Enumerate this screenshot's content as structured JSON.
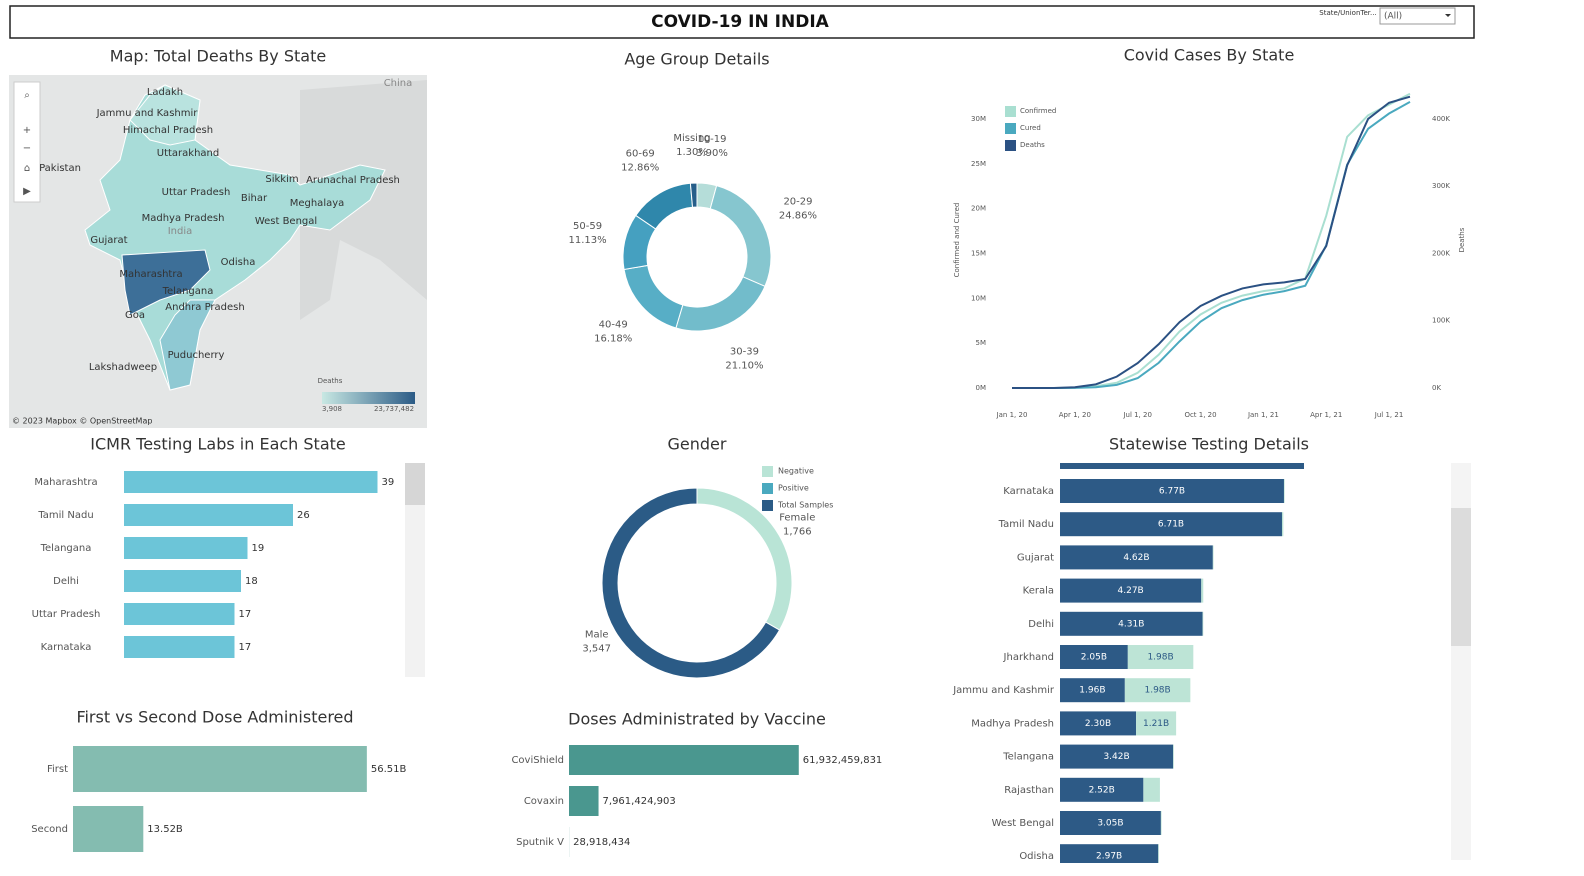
{
  "header": {
    "title": "COVID-19 IN INDIA",
    "filter_label": "State/UnionTer...",
    "filter_value": "(All)"
  },
  "map": {
    "title": "Map: Total Deaths By State",
    "labels": [
      "Ladakh",
      "Jammu and Kashmir",
      "Himachal Pradesh",
      "Uttarakhand",
      "Pakistan",
      "Uttar Pradesh",
      "Bihar",
      "Sikkim",
      "Arunachal Pradesh",
      "Meghalaya",
      "Madhya Pradesh",
      "West Bengal",
      "India",
      "Gujarat",
      "Odisha",
      "Maharashtra",
      "Telangana",
      "Andhra Pradesh",
      "Goa",
      "Puducherry",
      "Lakshadweep",
      "China"
    ],
    "legend_title": "Deaths",
    "legend_min": "3,908",
    "legend_max": "23,737,482",
    "credit": "© 2023 Mapbox © OpenStreetMap"
  },
  "chart_data": [
    {
      "type": "pie",
      "title": "Age Group Details",
      "categories": [
        "10-19",
        "20-29",
        "30-39",
        "40-49",
        "50-59",
        "60-69",
        "Missing"
      ],
      "values": [
        3.9,
        24.86,
        21.1,
        16.18,
        11.13,
        12.86,
        1.3
      ],
      "value_labels": [
        "3.90%",
        "24.86%",
        "21.10%",
        "16.18%",
        "11.13%",
        "12.86%",
        "1.30%"
      ],
      "colors": [
        "#b5ddd9",
        "#86c6cf",
        "#72bccb",
        "#57aec6",
        "#45a0c0",
        "#2f87ab",
        "#265e8a"
      ]
    },
    {
      "type": "line",
      "title": "Covid Cases By State",
      "categories": [
        "Jan 1, 20",
        null,
        null,
        "Apr 1, 20",
        null,
        null,
        "Jul 1, 20",
        null,
        null,
        "Oct 1, 20",
        null,
        null,
        "Jan 1, 21",
        null,
        null,
        "Apr 1, 21",
        null,
        null,
        "Jul 1, 21",
        null
      ],
      "series": [
        {
          "name": "Confirmed",
          "color": "#a9dfd1",
          "values": [
            0,
            0,
            1600,
            35000,
            190000,
            585000,
            1700000,
            3700000,
            6300000,
            8200000,
            9500000,
            10300000,
            10800000,
            11100000,
            12200000,
            19200000,
            28000000,
            30400000,
            31600000,
            32800000
          ]
        },
        {
          "name": "Cured",
          "color": "#4aa9bf",
          "values": [
            0,
            0,
            100,
            8000,
            90000,
            347000,
            1100000,
            2800000,
            5200000,
            7400000,
            8900000,
            9800000,
            10400000,
            10800000,
            11400000,
            15900000,
            24900000,
            28900000,
            30600000,
            31900000
          ]
        },
        {
          "name": "Deaths",
          "color": "#2b5183",
          "axis": "y2",
          "values": [
            0,
            0,
            50,
            1100,
            5400,
            16900,
            37000,
            65000,
            98000,
            122000,
            137000,
            148000,
            154000,
            157000,
            162000,
            211000,
            331000,
            400000,
            424000,
            433000
          ]
        }
      ],
      "y_label": "Confirmed and Cured",
      "y2_label": "Deaths",
      "ylim": [
        0,
        33000000
      ],
      "yticks": [
        {
          "value": 0,
          "label": "0M"
        },
        {
          "value": 5000000,
          "label": "5M"
        },
        {
          "value": 10000000,
          "label": "10M"
        },
        {
          "value": 15000000,
          "label": "15M"
        },
        {
          "value": 20000000,
          "label": "20M"
        },
        {
          "value": 25000000,
          "label": "25M"
        },
        {
          "value": 30000000,
          "label": "30M"
        }
      ],
      "y2lim": [
        0,
        440000
      ],
      "y2ticks": [
        {
          "value": 0,
          "label": "0K"
        },
        {
          "value": 100000,
          "label": "100K"
        },
        {
          "value": 200000,
          "label": "200K"
        },
        {
          "value": 300000,
          "label": "300K"
        },
        {
          "value": 400000,
          "label": "400K"
        }
      ],
      "legend": "top-left"
    },
    {
      "type": "hbar",
      "title": "ICMR Testing Labs in Each State",
      "categories": [
        "Maharashtra",
        "Tamil Nadu",
        "Telangana",
        "Delhi",
        "Uttar Pradesh",
        "Karnataka"
      ],
      "values": [
        39,
        26,
        19,
        18,
        17,
        17
      ],
      "color": "#6cc5d8",
      "xlim": [
        0,
        44
      ]
    },
    {
      "type": "pie",
      "title": "Gender",
      "categories": [
        "Female",
        "Male"
      ],
      "values": [
        1766,
        3547
      ],
      "value_labels": [
        "1,766",
        "3,547"
      ],
      "colors": [
        "#b9e4d6",
        "#2b5b86"
      ],
      "legend": [
        {
          "name": "Negative",
          "color": "#b9e4d6"
        },
        {
          "name": "Positive",
          "color": "#4aa9bf"
        },
        {
          "name": "Total Samples",
          "color": "#2b5b86"
        }
      ]
    },
    {
      "type": "hbar",
      "title": "Statewise Testing Details",
      "categories": [
        "Karnataka",
        "Tamil Nadu",
        "Gujarat",
        "Kerala",
        "Delhi",
        "Jharkhand",
        "Jammu and Kashmir",
        "Madhya Pradesh",
        "Telangana",
        "Rajasthan",
        "West Bengal",
        "Odisha"
      ],
      "series": [
        {
          "color": "#2d5a86",
          "values": [
            6.77,
            6.71,
            4.62,
            4.27,
            4.31,
            2.05,
            1.96,
            2.3,
            3.42,
            2.52,
            3.05,
            2.97
          ],
          "value_labels": [
            "6.77B",
            "6.71B",
            "4.62B",
            "4.27B",
            "4.31B",
            "2.05B",
            "1.96B",
            "2.30B",
            "3.42B",
            "2.52B",
            "3.05B",
            "2.97B"
          ]
        },
        {
          "color": "#bde4d6",
          "values": [
            0.02,
            0.04,
            0.02,
            0.06,
            0.02,
            1.98,
            1.98,
            1.21,
            0.02,
            0.5,
            0.02,
            0.02
          ],
          "value_labels": [
            null,
            null,
            null,
            null,
            null,
            "1.98B",
            "1.98B",
            "1.21B",
            null,
            null,
            null,
            null
          ]
        }
      ],
      "xlim": [
        0,
        12
      ]
    },
    {
      "type": "hbar",
      "title": "First vs Second Dose Administered",
      "categories": [
        "First",
        "Second"
      ],
      "values": [
        56.51,
        13.52
      ],
      "value_labels": [
        "56.51B",
        "13.52B"
      ],
      "color": "#84bcb0",
      "xlim": [
        0,
        65
      ]
    },
    {
      "type": "hbar",
      "title": "Doses Administrated by Vaccine",
      "categories": [
        "CoviShield",
        "Covaxin",
        "Sputnik V"
      ],
      "values": [
        61932459831,
        7961424903,
        28918434
      ],
      "value_labels": [
        "61,932,459,831",
        "7,961,424,903",
        "28,918,434"
      ],
      "color": "#4a978f",
      "xlim": [
        0,
        100000000000
      ]
    }
  ]
}
